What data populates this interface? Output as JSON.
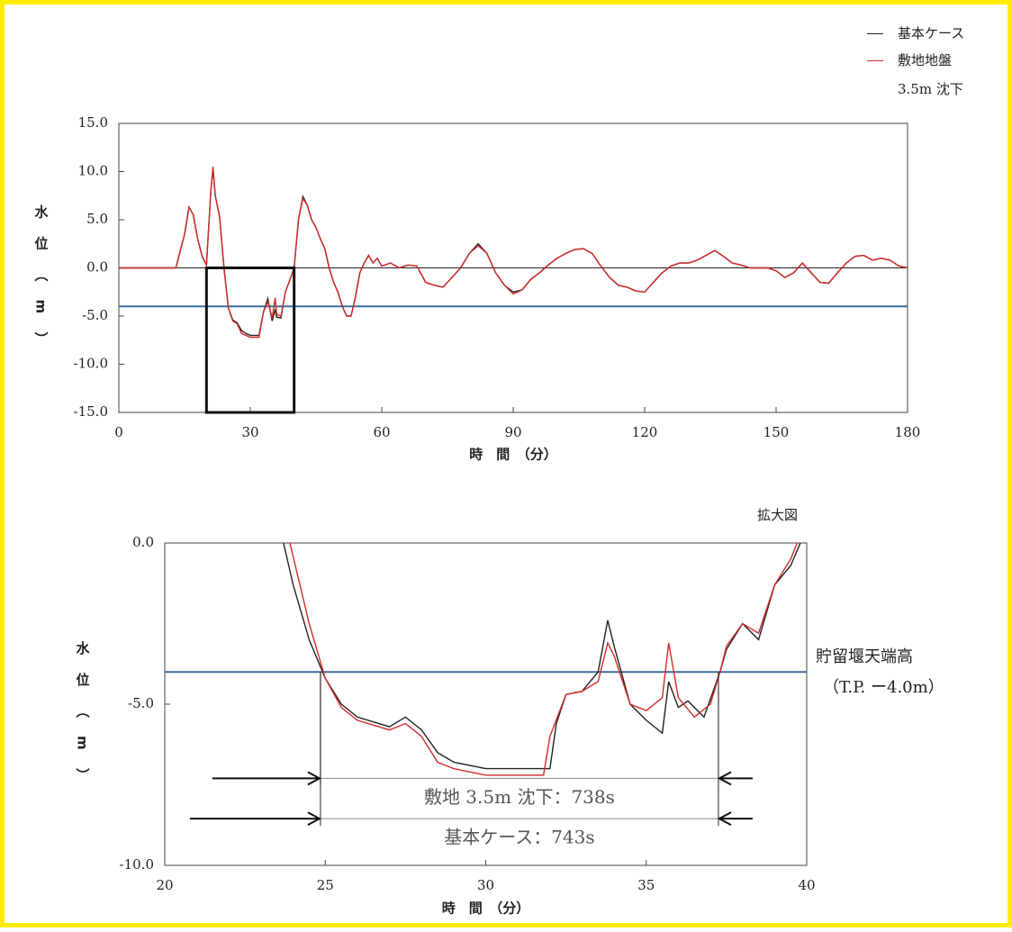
{
  "chart_data": [
    {
      "type": "line",
      "xlabel": "時　間　（分）",
      "ylabel": "水位（m）",
      "xlim": [
        0,
        180
      ],
      "xticks": [
        0,
        30,
        60,
        90,
        120,
        150,
        180
      ],
      "ylim": [
        -15,
        15
      ],
      "yticks": [
        {
          "value": -15,
          "label": "-15.0"
        },
        {
          "value": -10,
          "label": "-10.0"
        },
        {
          "value": -5,
          "label": "-5.0"
        },
        {
          "value": 0,
          "label": "0.0"
        },
        {
          "value": 5,
          "label": "5.0"
        },
        {
          "value": 10,
          "label": "10.0"
        },
        {
          "value": 15,
          "label": "15.0"
        }
      ],
      "hline": {
        "value": -4,
        "color": "#3f6e9e"
      },
      "zero_line": true,
      "zoom_box": {
        "x": [
          20,
          40
        ],
        "y": [
          -15,
          0
        ]
      },
      "legend": "upper right",
      "x": [
        0,
        10,
        13,
        15,
        16,
        17,
        18,
        19,
        20,
        21,
        21.5,
        22,
        23,
        24,
        25,
        26,
        27,
        28,
        29,
        30,
        31,
        32,
        33,
        34,
        35,
        35.7,
        36,
        37,
        38,
        39,
        40,
        41,
        42,
        43,
        44,
        45,
        46,
        47,
        48,
        49,
        50,
        51,
        52,
        53,
        54,
        55,
        56,
        57,
        58,
        59,
        60,
        62,
        64,
        66,
        68,
        70,
        72,
        74,
        76,
        78,
        80,
        82,
        84,
        86,
        88,
        90,
        92,
        94,
        96,
        98,
        100,
        102,
        104,
        106,
        108,
        110,
        112,
        114,
        116,
        118,
        120,
        122,
        124,
        126,
        128,
        130,
        132,
        134,
        136,
        138,
        140,
        142,
        144,
        146,
        148,
        150,
        152,
        154,
        156,
        158,
        160,
        162,
        164,
        166,
        168,
        170,
        172,
        174,
        176,
        178,
        180
      ],
      "series": [
        {
          "name": "基本ケース",
          "color": "#222222",
          "values": [
            0,
            0,
            0,
            3.5,
            6.3,
            5.5,
            3,
            1.2,
            0.3,
            8,
            10.3,
            7.5,
            5.3,
            0,
            -4.2,
            -5.4,
            -5.7,
            -6.5,
            -6.8,
            -7,
            -7,
            -7,
            -4.6,
            -3.2,
            -5.5,
            -4.3,
            -5.1,
            -5.2,
            -2.5,
            -1.3,
            0,
            5,
            7.4,
            6.5,
            5,
            4.2,
            3,
            2,
            0,
            -1.5,
            -2.5,
            -4,
            -5,
            -5,
            -3,
            -0.5,
            0.5,
            1.3,
            0.5,
            1,
            0.2,
            0.5,
            0,
            0.3,
            0.2,
            -1.5,
            -1.8,
            -2,
            -1,
            0,
            1.5,
            2.5,
            1.5,
            -0.5,
            -1.8,
            -2.5,
            -2.3,
            -1.2,
            -0.5,
            0.3,
            1,
            1.5,
            1.9,
            2,
            1.5,
            0.2,
            -1,
            -1.8,
            -2,
            -2.4,
            -2.5,
            -1.5,
            -0.5,
            0.2,
            0.5,
            0.5,
            0.8,
            1.3,
            1.8,
            1.2,
            0.5,
            0.3,
            0,
            0,
            0,
            -0.3,
            -1,
            -0.5,
            0.5,
            -0.5,
            -1.5,
            -1.6,
            -0.5,
            0.5,
            1.2,
            1.3,
            0.8,
            1,
            0.8,
            0.2,
            0
          ]
        },
        {
          "name": "敷地地盤\n3.5m 沈下",
          "color": "#d42a2a",
          "values": [
            0,
            0,
            0,
            3.5,
            6.3,
            5.5,
            3,
            1.2,
            0.3,
            8,
            10.5,
            7.5,
            5.3,
            0,
            -4.2,
            -5.5,
            -5.8,
            -6.8,
            -7,
            -7.2,
            -7.2,
            -7.2,
            -4.6,
            -3.5,
            -5.2,
            -3.1,
            -4.8,
            -5,
            -2.5,
            -1.3,
            0,
            5,
            7.2,
            6.5,
            5,
            4.2,
            3,
            2,
            0,
            -1.5,
            -2.5,
            -4,
            -5,
            -5,
            -3,
            -0.5,
            0.5,
            1.3,
            0.5,
            1,
            0.2,
            0.5,
            0,
            0.3,
            0.2,
            -1.5,
            -1.8,
            -2,
            -1,
            0,
            1.5,
            2.3,
            1.5,
            -0.5,
            -1.8,
            -2.7,
            -2.3,
            -1.2,
            -0.5,
            0.3,
            1,
            1.5,
            1.9,
            2,
            1.5,
            0.2,
            -1,
            -1.8,
            -2,
            -2.4,
            -2.5,
            -1.5,
            -0.5,
            0.2,
            0.5,
            0.5,
            0.8,
            1.3,
            1.8,
            1.2,
            0.5,
            0.3,
            0,
            0,
            0,
            -0.3,
            -1,
            -0.5,
            0.5,
            -0.5,
            -1.5,
            -1.6,
            -0.5,
            0.5,
            1.2,
            1.3,
            0.8,
            1,
            0.8,
            0.2,
            0
          ]
        }
      ]
    },
    {
      "type": "line",
      "title": "拡大図",
      "xlabel": "時　間　（分）",
      "ylabel": "水位（m）",
      "xlim": [
        20,
        40
      ],
      "xticks": [
        20,
        25,
        30,
        35,
        40
      ],
      "ylim": [
        -10,
        0
      ],
      "yticks": [
        {
          "value": -10,
          "label": "-10.0"
        },
        {
          "value": -5,
          "label": "-5.0"
        },
        {
          "value": 0,
          "label": "0.0"
        }
      ],
      "hline": {
        "value": -4,
        "color": "#3f6e9e",
        "label": [
          "貯留堰天端高",
          "（T.P. ー4.0m）"
        ]
      },
      "spans": [
        {
          "label": "敷地 3.5m 沈下：738s",
          "start": 24.85,
          "end": 37.25,
          "y": -7.3
        },
        {
          "label": "基本ケース：743s",
          "start": 24.85,
          "end": 37.25,
          "y": -8.55
        }
      ],
      "series": [
        {
          "color": "#222222",
          "x": [
            23.7,
            24,
            24.5,
            25,
            25.5,
            26,
            27,
            27.5,
            28,
            28.5,
            29,
            30,
            31,
            32,
            32.2,
            32.5,
            33,
            33.5,
            33.8,
            34,
            34.5,
            35,
            35.5,
            35.7,
            36,
            36.3,
            36.8,
            37.3,
            37.5,
            38,
            38.5,
            39,
            39.5,
            39.8
          ],
          "values": [
            0,
            -1.3,
            -3,
            -4.2,
            -5,
            -5.4,
            -5.7,
            -5.4,
            -5.8,
            -6.5,
            -6.8,
            -7,
            -7,
            -7,
            -5.6,
            -4.7,
            -4.6,
            -4,
            -2.4,
            -3.2,
            -5,
            -5.5,
            -5.9,
            -4.3,
            -5.1,
            -4.9,
            -5.4,
            -4,
            -3.3,
            -2.5,
            -3,
            -1.3,
            -0.7,
            0
          ]
        },
        {
          "color": "#d42a2a",
          "x": [
            23.9,
            24.5,
            25,
            25.5,
            26,
            27,
            27.5,
            28,
            28.5,
            29,
            30,
            31,
            31.8,
            32,
            32.5,
            33,
            33.5,
            33.8,
            34,
            34.5,
            35,
            35.5,
            35.7,
            36,
            36.5,
            37,
            37.3,
            37.5,
            38,
            38.5,
            39,
            39.5,
            39.7
          ],
          "values": [
            0,
            -2.5,
            -4.2,
            -5.1,
            -5.5,
            -5.8,
            -5.6,
            -6,
            -6.8,
            -7,
            -7.2,
            -7.2,
            -7.2,
            -6,
            -4.7,
            -4.6,
            -4.3,
            -3.1,
            -3.5,
            -5,
            -5.2,
            -4.8,
            -3.1,
            -4.8,
            -5.4,
            -5,
            -4,
            -3.2,
            -2.5,
            -2.8,
            -1.3,
            -0.5,
            0
          ]
        }
      ]
    }
  ]
}
